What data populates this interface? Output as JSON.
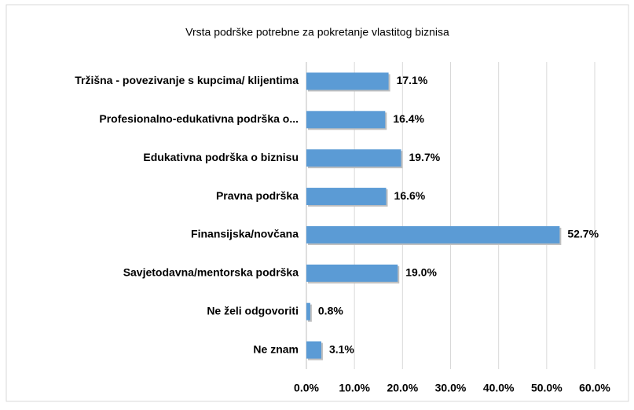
{
  "chart_data": {
    "type": "bar",
    "orientation": "horizontal",
    "title": "Vrsta podrške potrebne za pokretanje vlastitog biznisa",
    "categories": [
      "Tržišna - povezivanje s kupcima/ klijentima",
      "Profesionalno-edukativna podrška o...",
      "Edukativna podrška o biznisu",
      "Pravna podrška",
      "Finansijska/novčana",
      "Savjetodavna/mentorska podrška",
      "Ne želi odgovoriti",
      "Ne znam"
    ],
    "values": [
      17.1,
      16.4,
      19.7,
      16.6,
      52.7,
      19.0,
      0.8,
      3.1
    ],
    "value_labels": [
      "17.1%",
      "16.4%",
      "19.7%",
      "16.6%",
      "52.7%",
      "19.0%",
      "0.8%",
      "3.1%"
    ],
    "color": "#5b9bd5",
    "xlim": [
      0,
      60
    ],
    "xticks": [
      {
        "value": 0,
        "label": "0.0%"
      },
      {
        "value": 10,
        "label": "10.0%"
      },
      {
        "value": 20,
        "label": "20.0%"
      },
      {
        "value": 30,
        "label": "30.0%"
      },
      {
        "value": 40,
        "label": "40.0%"
      },
      {
        "value": 50,
        "label": "50.0%"
      },
      {
        "value": 60,
        "label": "60.0%"
      }
    ],
    "grid": true
  }
}
